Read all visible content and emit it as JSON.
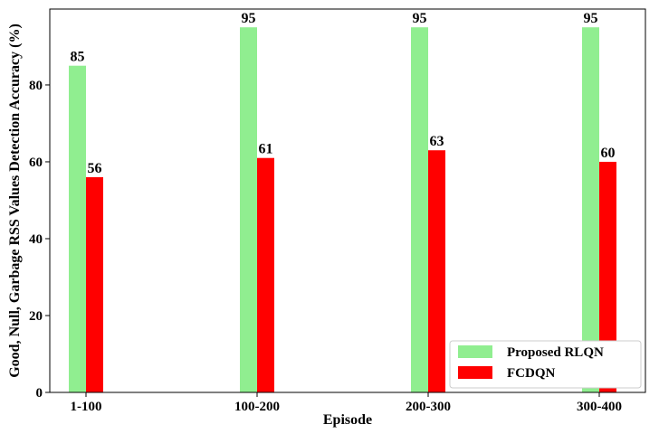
{
  "chart_data": {
    "type": "bar",
    "categories": [
      "1-100",
      "100-200",
      "200-300",
      "300-400"
    ],
    "series": [
      {
        "name": "Proposed RLQN",
        "values": [
          85,
          95,
          95,
          95
        ],
        "labels": [
          "85",
          "95",
          "95",
          "95"
        ],
        "color": "#90ee90"
      },
      {
        "name": "FCDQN",
        "values": [
          56,
          61,
          63,
          60
        ],
        "labels": [
          "56",
          "61",
          "63",
          "60"
        ],
        "color": "#ff0000"
      }
    ],
    "xlabel": "Episode",
    "ylabel": "Good, Null, Garbage RSS Values Detection Accuracy (%)",
    "ylim": [
      0,
      99.75
    ],
    "yticks": [
      0,
      20,
      40,
      60,
      80
    ],
    "ytick_labels": [
      "0",
      "20",
      "40",
      "60",
      "80"
    ],
    "grid": false,
    "legend_position": "lower right"
  }
}
